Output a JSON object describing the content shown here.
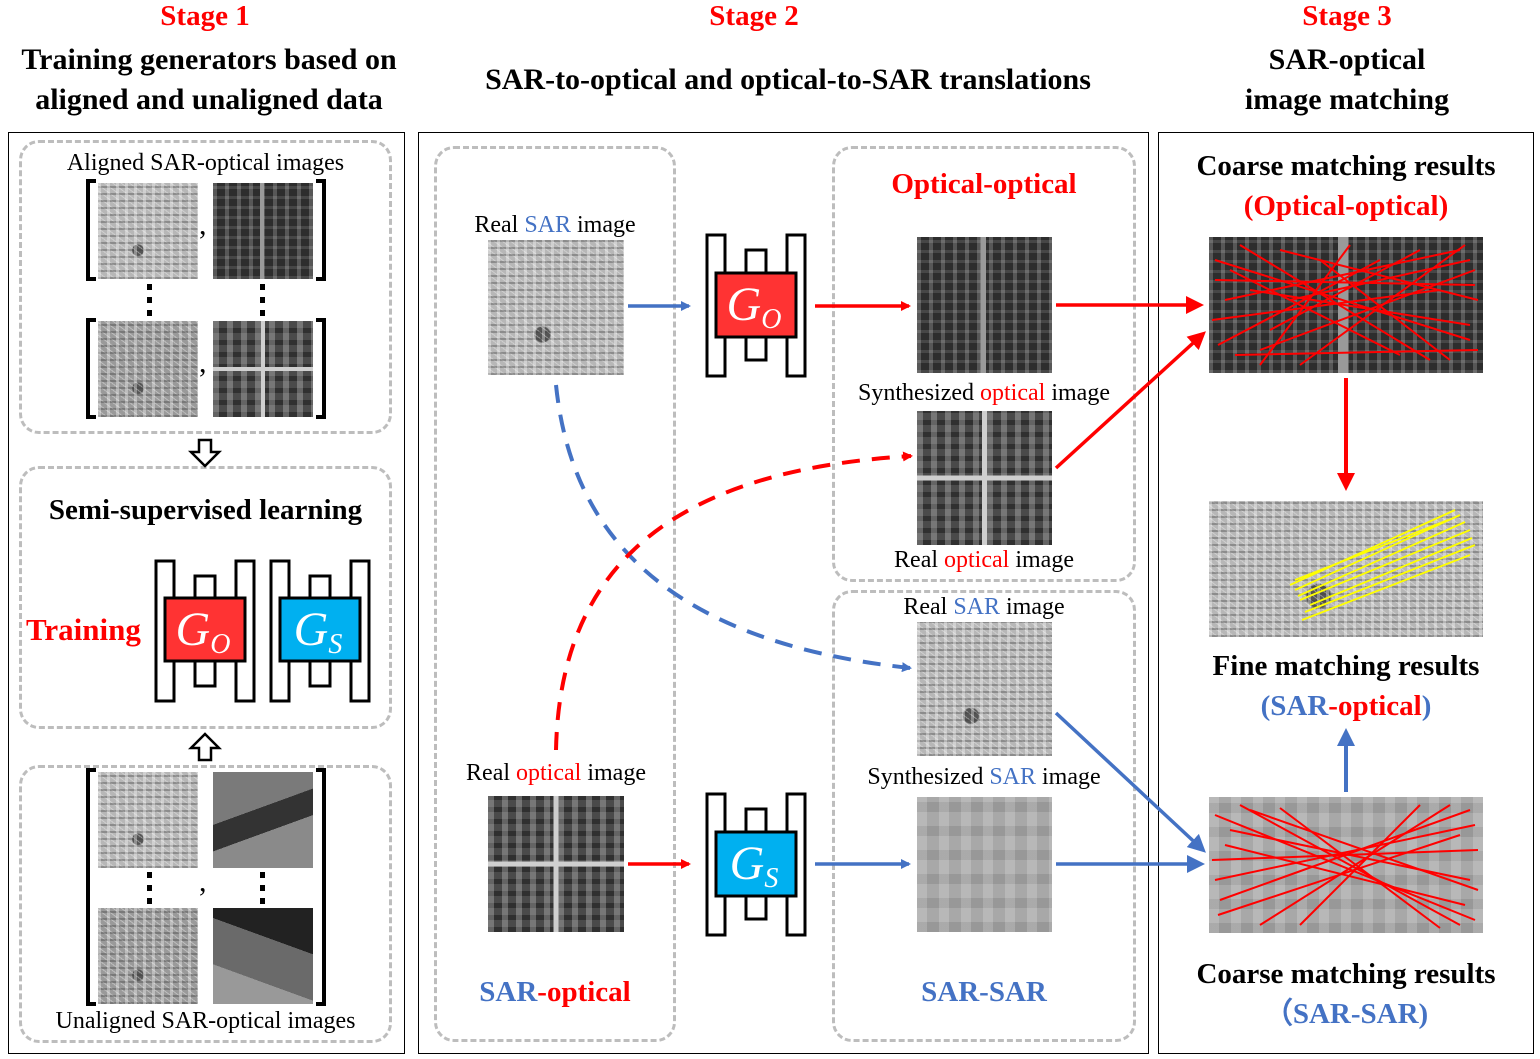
{
  "stage1": {
    "title": "Stage 1",
    "heading_line1": "Training generators based on",
    "heading_line2": "aligned and unaligned data",
    "aligned_label": "Aligned SAR-optical images",
    "comma": ",",
    "semi_title": "Semi-supervised learning",
    "training_label": "Training",
    "unaligned_label": "Unaligned SAR-optical images"
  },
  "stage2": {
    "title": "Stage 2",
    "heading": "SAR-to-optical and optical-to-SAR translations",
    "real_sar_top": {
      "prefix": "Real ",
      "key": "SAR",
      "suffix": " image"
    },
    "real_optical_bottom": {
      "prefix": "Real ",
      "key": "optical",
      "suffix": " image"
    },
    "optical_optical_title": "Optical-optical",
    "synth_optical": {
      "prefix": "Synthesized ",
      "key": "optical",
      "suffix": " image"
    },
    "real_optical_right": {
      "prefix": "Real ",
      "key": "optical",
      "suffix": " image"
    },
    "real_sar_right": {
      "prefix": "Real ",
      "key": "SAR",
      "suffix": " image"
    },
    "synth_sar": {
      "prefix": "Synthesized ",
      "key": "SAR",
      "suffix": " image"
    },
    "left_footer": {
      "part1": "SAR",
      "part2": "-optical"
    },
    "right_footer": "SAR-SAR"
  },
  "generators": {
    "go": {
      "letter": "G",
      "sub": "O",
      "color": "#ff3333"
    },
    "gs": {
      "letter": "G",
      "sub": "S",
      "color": "#00b0f0"
    }
  },
  "stage3": {
    "title": "Stage 3",
    "heading_line1": "SAR-optical",
    "heading_line2": "image matching",
    "coarse_top_line1": "Coarse matching results",
    "coarse_top_line2": "(Optical-optical)",
    "fine_line1": "Fine matching results",
    "fine_line2": {
      "open": "(",
      "part1": "SAR",
      "part2": "-optical",
      "close": ")"
    },
    "coarse_bottom_line1": "Coarse matching results",
    "coarse_bottom_line2": "（SAR-SAR)"
  },
  "colors": {
    "red": "#ff0000",
    "blue": "#4472c4",
    "yellow": "#ffff00",
    "gray_dash": "#bdbdbd"
  }
}
